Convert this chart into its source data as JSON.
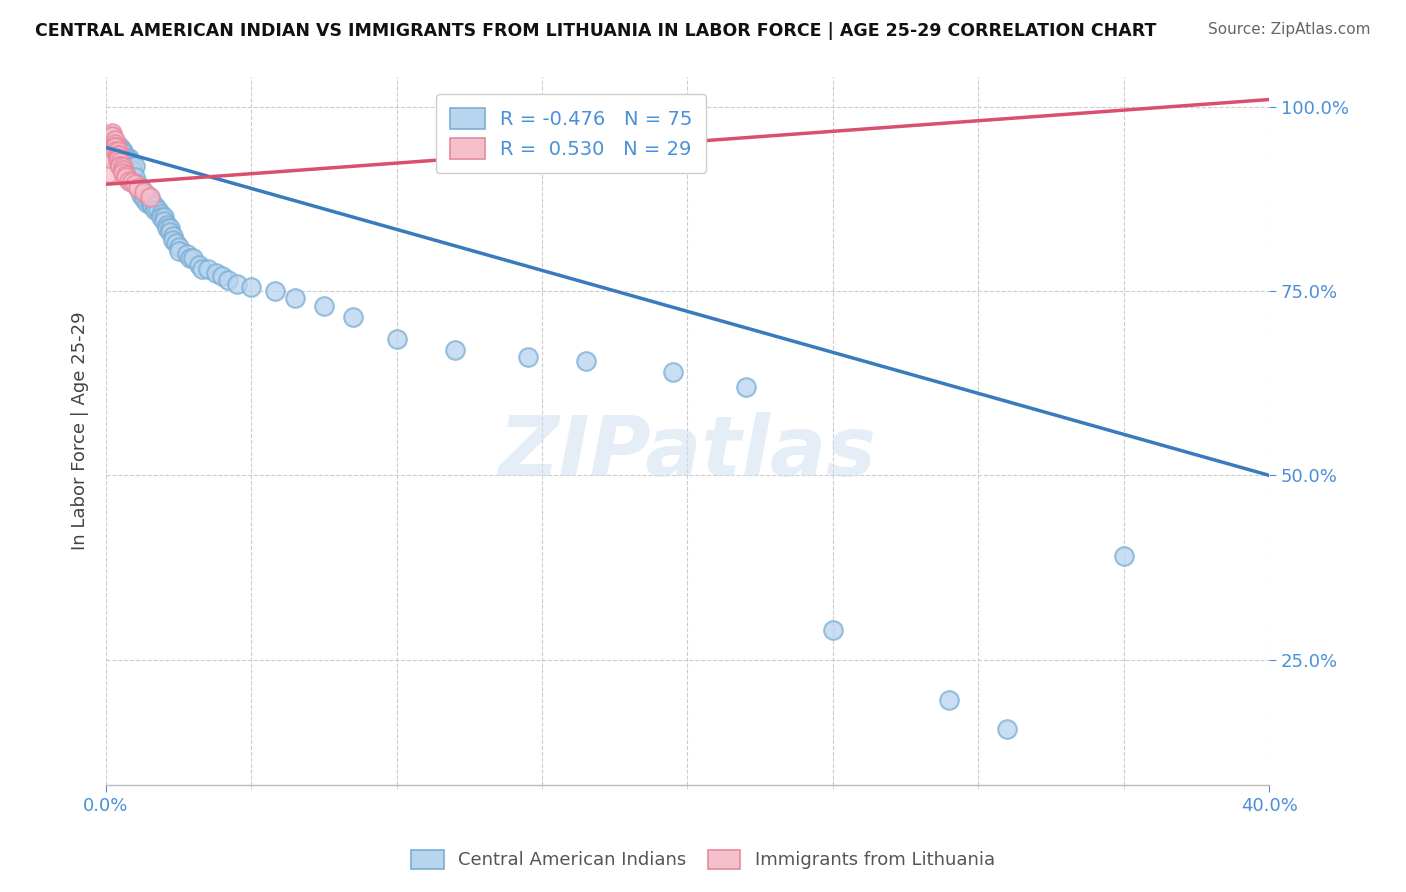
{
  "title": "CENTRAL AMERICAN INDIAN VS IMMIGRANTS FROM LITHUANIA IN LABOR FORCE | AGE 25-29 CORRELATION CHART",
  "source": "Source: ZipAtlas.com",
  "yaxis_label": "In Labor Force | Age 25-29",
  "legend_blue_label": "R = -0.476   N = 75",
  "legend_pink_label": "R =  0.530   N = 29",
  "blue_color_fill": "#b8d4ee",
  "blue_color_edge": "#7aaed4",
  "pink_color_fill": "#f5bfcc",
  "pink_color_edge": "#e888a0",
  "blue_line_color": "#3a7abf",
  "pink_line_color": "#d94f70",
  "blue_scatter": [
    [
      0.002,
      0.96
    ],
    [
      0.003,
      0.95
    ],
    [
      0.003,
      0.945
    ],
    [
      0.004,
      0.945
    ],
    [
      0.004,
      0.94
    ],
    [
      0.005,
      0.945
    ],
    [
      0.005,
      0.94
    ],
    [
      0.005,
      0.935
    ],
    [
      0.006,
      0.94
    ],
    [
      0.006,
      0.938
    ],
    [
      0.006,
      0.93
    ],
    [
      0.006,
      0.93
    ],
    [
      0.007,
      0.93
    ],
    [
      0.007,
      0.928
    ],
    [
      0.008,
      0.93
    ],
    [
      0.008,
      0.928
    ],
    [
      0.008,
      0.925
    ],
    [
      0.009,
      0.92
    ],
    [
      0.009,
      0.915
    ],
    [
      0.01,
      0.92
    ],
    [
      0.01,
      0.905
    ],
    [
      0.011,
      0.895
    ],
    [
      0.011,
      0.89
    ],
    [
      0.012,
      0.89
    ],
    [
      0.012,
      0.88
    ],
    [
      0.013,
      0.88
    ],
    [
      0.013,
      0.88
    ],
    [
      0.013,
      0.875
    ],
    [
      0.014,
      0.88
    ],
    [
      0.014,
      0.87
    ],
    [
      0.015,
      0.875
    ],
    [
      0.015,
      0.87
    ],
    [
      0.016,
      0.87
    ],
    [
      0.016,
      0.865
    ],
    [
      0.017,
      0.865
    ],
    [
      0.017,
      0.86
    ],
    [
      0.018,
      0.86
    ],
    [
      0.019,
      0.855
    ],
    [
      0.019,
      0.85
    ],
    [
      0.02,
      0.85
    ],
    [
      0.02,
      0.845
    ],
    [
      0.021,
      0.84
    ],
    [
      0.021,
      0.835
    ],
    [
      0.022,
      0.835
    ],
    [
      0.022,
      0.83
    ],
    [
      0.023,
      0.825
    ],
    [
      0.023,
      0.82
    ],
    [
      0.024,
      0.815
    ],
    [
      0.025,
      0.81
    ],
    [
      0.025,
      0.805
    ],
    [
      0.028,
      0.8
    ],
    [
      0.029,
      0.795
    ],
    [
      0.03,
      0.795
    ],
    [
      0.032,
      0.785
    ],
    [
      0.033,
      0.78
    ],
    [
      0.035,
      0.78
    ],
    [
      0.038,
      0.775
    ],
    [
      0.04,
      0.77
    ],
    [
      0.042,
      0.765
    ],
    [
      0.045,
      0.76
    ],
    [
      0.05,
      0.755
    ],
    [
      0.058,
      0.75
    ],
    [
      0.065,
      0.74
    ],
    [
      0.075,
      0.73
    ],
    [
      0.085,
      0.715
    ],
    [
      0.1,
      0.685
    ],
    [
      0.12,
      0.67
    ],
    [
      0.145,
      0.66
    ],
    [
      0.165,
      0.655
    ],
    [
      0.195,
      0.64
    ],
    [
      0.22,
      0.62
    ],
    [
      0.25,
      0.29
    ],
    [
      0.29,
      0.195
    ],
    [
      0.31,
      0.155
    ],
    [
      0.35,
      0.39
    ]
  ],
  "pink_scatter": [
    [
      0.001,
      0.91
    ],
    [
      0.001,
      0.93
    ],
    [
      0.002,
      0.95
    ],
    [
      0.002,
      0.965
    ],
    [
      0.002,
      0.96
    ],
    [
      0.003,
      0.955
    ],
    [
      0.003,
      0.95
    ],
    [
      0.003,
      0.945
    ],
    [
      0.003,
      0.945
    ],
    [
      0.003,
      0.94
    ],
    [
      0.004,
      0.94
    ],
    [
      0.004,
      0.935
    ],
    [
      0.004,
      0.935
    ],
    [
      0.004,
      0.93
    ],
    [
      0.004,
      0.928
    ],
    [
      0.005,
      0.925
    ],
    [
      0.005,
      0.92
    ],
    [
      0.005,
      0.92
    ],
    [
      0.006,
      0.918
    ],
    [
      0.006,
      0.915
    ],
    [
      0.006,
      0.91
    ],
    [
      0.007,
      0.908
    ],
    [
      0.007,
      0.905
    ],
    [
      0.008,
      0.9
    ],
    [
      0.009,
      0.898
    ],
    [
      0.01,
      0.895
    ],
    [
      0.011,
      0.89
    ],
    [
      0.013,
      0.885
    ],
    [
      0.015,
      0.878
    ]
  ],
  "blue_trend_x": [
    0.0,
    0.4
  ],
  "blue_trend_y": [
    0.945,
    0.5
  ],
  "pink_trend_x": [
    0.0,
    0.4
  ],
  "pink_trend_y": [
    0.895,
    1.01
  ],
  "xmin": 0.0,
  "xmax": 0.4,
  "ymin": 0.08,
  "ymax": 1.04,
  "watermark_text": "ZIPatlas",
  "background_color": "#ffffff",
  "grid_color": "#cccccc",
  "axis_color": "#4a90d9",
  "title_color": "#111111",
  "source_color": "#666666",
  "ylabel_color": "#444444",
  "scatter_size": 180,
  "scatter_linewidth": 1.5
}
